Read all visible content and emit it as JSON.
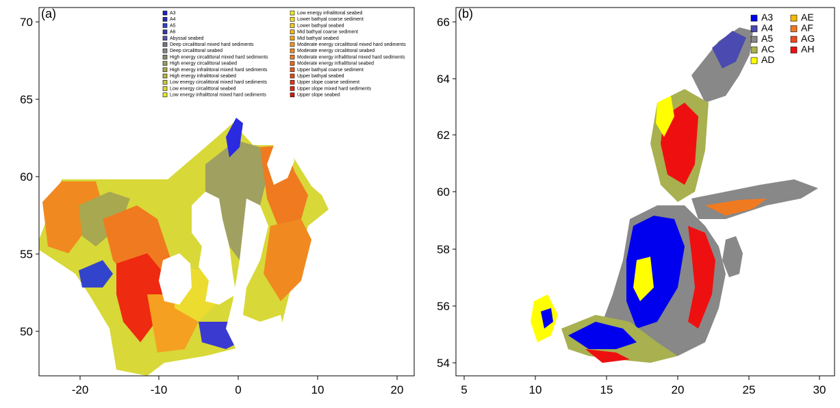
{
  "panel_a": {
    "tag": "(a)",
    "x_ticks": [
      "-20",
      "-10",
      "0",
      "10",
      "20"
    ],
    "y_ticks": [
      "70",
      "65",
      "60",
      "55",
      "50"
    ],
    "legend_col1": [
      {
        "label": "A3",
        "color": "#1f22c8"
      },
      {
        "label": "A4",
        "color": "#2a2ab0"
      },
      {
        "label": "A5",
        "color": "#3344cc"
      },
      {
        "label": "A6",
        "color": "#3a3aa0"
      },
      {
        "label": "Abyssal seabed",
        "color": "#5555a8"
      },
      {
        "label": "Deep circalittoral mixed hard sediments",
        "color": "#777788"
      },
      {
        "label": "Deep circalittoral seabed",
        "color": "#888888"
      },
      {
        "label": "High energy circalittoral mixed hard sediments",
        "color": "#8a8a70"
      },
      {
        "label": "High energy circalittoral seabed",
        "color": "#99a060"
      },
      {
        "label": "High energy infralittoral mixed hard sediments",
        "color": "#a8a850"
      },
      {
        "label": "High energy infralittoral seabed",
        "color": "#b5b548"
      },
      {
        "label": "Low energy circalittoral mixed hard sediments",
        "color": "#c8c840"
      },
      {
        "label": "Low energy circalittoral seabed",
        "color": "#d8d838"
      },
      {
        "label": "Low energy infralittoral mixed hard sediments",
        "color": "#e6e630"
      }
    ],
    "legend_col2": [
      {
        "label": "Low energy infralittoral seabed",
        "color": "#f0f020"
      },
      {
        "label": "Lower bathyal coarse sediment",
        "color": "#f5e020"
      },
      {
        "label": "Lower bathyal seabed",
        "color": "#f7cc1a"
      },
      {
        "label": "Mid bathyal coarse sediment",
        "color": "#f8b818"
      },
      {
        "label": "Mid bathyal seabed",
        "color": "#f8a818"
      },
      {
        "label": "Moderate energy circalittoral mixed hard sediments",
        "color": "#f59820"
      },
      {
        "label": "Moderate energy circalittoral seabed",
        "color": "#f28a20"
      },
      {
        "label": "Moderate energy infralittoral mixed hard sediments",
        "color": "#ef7a20"
      },
      {
        "label": "Moderate energy infralittoral seabed",
        "color": "#ec6a20"
      },
      {
        "label": "Upper bathyal coarse sediment",
        "color": "#e85a20"
      },
      {
        "label": "Upper bathyal seabed",
        "color": "#e44a1c"
      },
      {
        "label": "Upper slope coarse sediment",
        "color": "#e03a18"
      },
      {
        "label": "Upper slope mixed hard sediments",
        "color": "#d82a14"
      },
      {
        "label": "Upper slope seabed",
        "color": "#cc1a10"
      }
    ]
  },
  "panel_b": {
    "tag": "(b)",
    "x_ticks": [
      "5",
      "10",
      "15",
      "20",
      "25",
      "30"
    ],
    "y_ticks": [
      "66",
      "64",
      "62",
      "60",
      "58",
      "56",
      "54"
    ],
    "legend_col1": [
      {
        "label": "A3",
        "color": "#0000ee"
      },
      {
        "label": "A4",
        "color": "#4a4ab0"
      },
      {
        "label": "A5",
        "color": "#888888"
      },
      {
        "label": "AC",
        "color": "#a8b050"
      },
      {
        "label": "AD",
        "color": "#ffff00"
      }
    ],
    "legend_col2": [
      {
        "label": "AE",
        "color": "#f6b800"
      },
      {
        "label": "AF",
        "color": "#f07a20"
      },
      {
        "label": "AG",
        "color": "#ee4a20"
      },
      {
        "label": "AH",
        "color": "#ee1010"
      }
    ]
  }
}
